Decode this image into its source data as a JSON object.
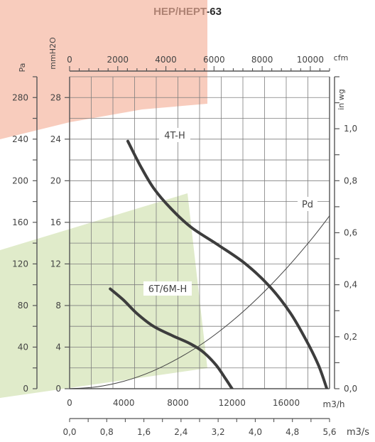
{
  "chart_data": {
    "type": "line",
    "title": "HEP/HEPT-63",
    "axes": {
      "left_pa": {
        "label": "Pa",
        "ticks": [
          "0",
          "40",
          "80",
          "120",
          "160",
          "200",
          "240",
          "280"
        ],
        "range": [
          0,
          300
        ]
      },
      "left_mmh2o": {
        "label": "mmH2O",
        "ticks": [
          "0",
          "4",
          "8",
          "12",
          "16",
          "20",
          "24",
          "28"
        ],
        "range": [
          0,
          30
        ]
      },
      "right_inwg": {
        "label": "in wg",
        "ticks": [
          "0,0",
          "0,2",
          "0,4",
          "0,6",
          "0,8",
          "1,0"
        ],
        "range": [
          0,
          1.2
        ]
      },
      "top_cfm": {
        "label": "cfm",
        "ticks": [
          "0",
          "2000",
          "4000",
          "6000",
          "8000",
          "10000"
        ],
        "range": [
          0,
          10800
        ]
      },
      "bottom_m3h": {
        "label": "m3/h",
        "ticks": [
          "0",
          "4000",
          "8000",
          "12000",
          "16000"
        ],
        "range": [
          0,
          19200
        ]
      },
      "bottom_m3s": {
        "label": "m3/s",
        "ticks": [
          "0,0",
          "0,8",
          "1,6",
          "2,4",
          "3,2",
          "4,0",
          "4,8",
          "5,6"
        ],
        "range": [
          0,
          5.6
        ]
      }
    },
    "grid": true,
    "x_unit": "m3/h",
    "y_unit": "mmH2O",
    "series": [
      {
        "name": "4T-H",
        "color": "#3d3d3d",
        "x": [
          4300,
          5200,
          6200,
          7500,
          9000,
          11000,
          13000,
          14800,
          16300,
          17500,
          18400,
          19000
        ],
        "y": [
          23.8,
          21.5,
          19.3,
          17.3,
          15.5,
          13.8,
          12.0,
          9.8,
          7.3,
          4.6,
          2.2,
          0.0
        ]
      },
      {
        "name": "6T/6M-H",
        "color": "#3d3d3d",
        "x": [
          3000,
          4000,
          5000,
          6200,
          7600,
          8800,
          9800,
          10800,
          11500,
          12000
        ],
        "y": [
          9.6,
          8.5,
          7.2,
          6.0,
          5.1,
          4.4,
          3.6,
          2.3,
          1.0,
          0.0
        ]
      },
      {
        "name": "Pd",
        "color": "#444444",
        "x": [
          0,
          2000,
          4000,
          6000,
          8000,
          10000,
          12000,
          14000,
          16000,
          18000,
          19300
        ],
        "y": [
          0.0,
          0.18,
          0.72,
          1.62,
          2.9,
          4.5,
          6.5,
          8.85,
          11.55,
          14.6,
          16.8
        ]
      }
    ],
    "regions": [
      {
        "name": "red",
        "color": "#f4b09a"
      },
      {
        "name": "green",
        "color": "#d3e3b3"
      }
    ]
  }
}
